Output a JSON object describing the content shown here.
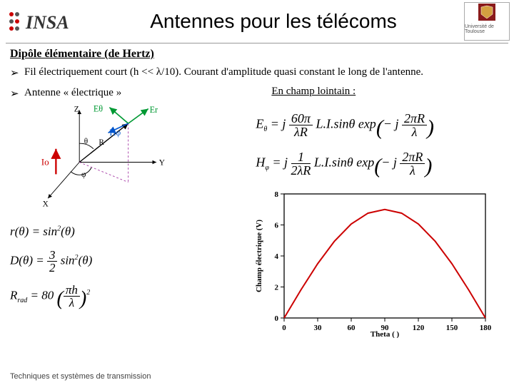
{
  "title": "Antennes pour les télécoms",
  "section_heading": "Dipôle élémentaire (de Hertz)",
  "bullet1": "Fil électriquement court (h << λ/10). Courant d'amplitude quasi constant le long de l'antenne.",
  "bullet2": "Antenne « électrique »",
  "farfield_label": "En champ lointain :",
  "footer": "Techniques et systèmes de transmission",
  "diagram": {
    "axes": [
      "X",
      "Y",
      "Z"
    ],
    "labels": {
      "Io": "Io",
      "theta": "θ",
      "phi": "φ",
      "R": "R",
      "Etheta": "Eθ",
      "Er": "Er",
      "Hphi": "Hφ"
    },
    "colors": {
      "current": "#c00",
      "Efield": "#009933",
      "Hfield": "#0055cc",
      "axes": "#000",
      "dashed": "#aa44aa"
    }
  },
  "small_formulas": {
    "r": "r(θ) = sin²(θ)",
    "D": "D(θ) = (3/2) sin²(θ)",
    "Rrad": "R_rad = 80 (πh / λ)²"
  },
  "field_formulas": {
    "E": "Eθ = j (60π / λR) · L·I · sinθ · exp(−j 2πR/λ)",
    "H": "Hφ = j (1 / 2λR) · L·I · sinθ · exp(−j 2πR/λ)"
  },
  "chart": {
    "type": "line",
    "xlabel": "Theta ( )",
    "ylabel": "Champ électrique (V)",
    "xlim": [
      0,
      180
    ],
    "xtick_step": 30,
    "ylim": [
      0,
      8
    ],
    "ytick_step": 2,
    "line_color": "#cc0000",
    "line_width": 2,
    "background": "#ffffff",
    "axis_color": "#000000",
    "title_fontsize": 11,
    "label_fontsize": 11,
    "x": [
      0,
      15,
      30,
      45,
      60,
      75,
      90,
      105,
      120,
      135,
      150,
      165,
      180
    ],
    "y": [
      0,
      1.81,
      3.5,
      4.95,
      6.06,
      6.76,
      7.0,
      6.76,
      6.06,
      4.95,
      3.5,
      1.81,
      0
    ]
  },
  "logo_insa": {
    "text": "INSA",
    "colors": [
      "#c00",
      "#333"
    ]
  },
  "logo_ut": {
    "text": "Université de Toulouse",
    "shield": "#8a1a1a"
  }
}
